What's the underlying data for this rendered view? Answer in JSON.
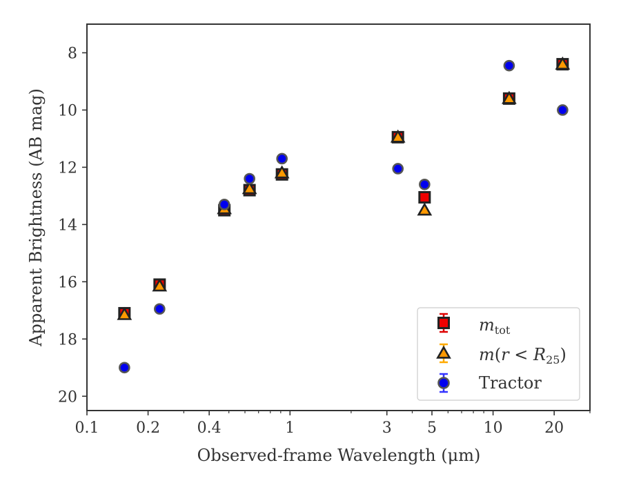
{
  "chart_data": {
    "type": "scatter",
    "xlabel": "Observed-frame Wavelength (μm)",
    "ylabel": "Apparent Brightness (AB mag)",
    "xscale": "log",
    "xlim": [
      0.1,
      30
    ],
    "ylim": [
      20.5,
      7.0
    ],
    "y_inverted": true,
    "xticks": [
      0.1,
      0.2,
      0.4,
      1,
      3,
      5,
      10,
      20
    ],
    "xtick_labels": [
      "0.1",
      "0.2",
      "0.4",
      "1",
      "3",
      "5",
      "10",
      "20"
    ],
    "yticks": [
      8,
      10,
      12,
      14,
      16,
      18,
      20
    ],
    "ytick_labels": [
      "8",
      "10",
      "12",
      "14",
      "16",
      "18",
      "20"
    ],
    "legend_position": "lower right",
    "series": [
      {
        "name": "m_tot",
        "legend_main": "m",
        "legend_sub": "tot",
        "marker": "square",
        "color": "#ee0000",
        "errorbar_color": "#dd0000",
        "x": [
          0.153,
          0.228,
          0.475,
          0.632,
          0.913,
          3.4,
          4.6,
          12.0,
          22.0
        ],
        "y": [
          17.1,
          16.1,
          13.5,
          12.8,
          12.25,
          10.95,
          13.05,
          9.6,
          8.4
        ]
      },
      {
        "name": "m(r < R_25)",
        "legend_pre": "m(",
        "legend_mid": "r < R",
        "legend_sub": "25",
        "legend_post": ")",
        "marker": "triangle",
        "color": "#ff9900",
        "errorbar_color": "#ffaa00",
        "x": [
          0.153,
          0.228,
          0.475,
          0.632,
          0.913,
          3.4,
          4.6,
          12.0,
          22.0
        ],
        "y": [
          17.15,
          16.15,
          13.45,
          12.75,
          12.2,
          10.95,
          13.5,
          9.6,
          8.4
        ]
      },
      {
        "name": "Tractor",
        "marker": "circle",
        "color": "#0000ee",
        "errorbar_color": "#3333ff",
        "x": [
          0.153,
          0.228,
          0.475,
          0.632,
          0.913,
          3.4,
          4.6,
          12.0,
          22.0
        ],
        "y": [
          19.0,
          16.95,
          13.3,
          12.4,
          11.7,
          12.05,
          12.6,
          8.45,
          10.0
        ]
      }
    ]
  }
}
